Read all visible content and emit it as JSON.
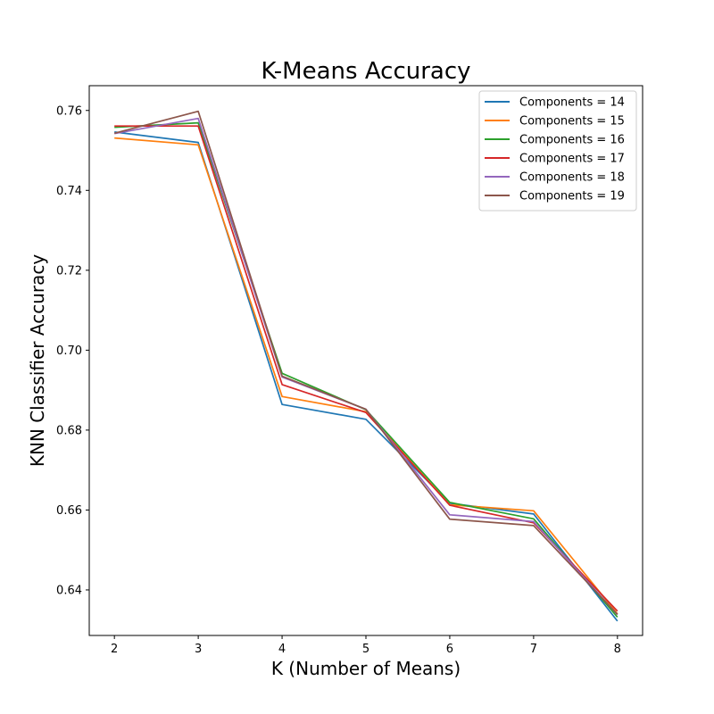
{
  "chart_data": {
    "type": "line",
    "title": "K-Means Accuracy",
    "xlabel": "K (Number of Means)",
    "ylabel": "KNN Classifier Accuracy",
    "x": [
      2,
      3,
      4,
      5,
      6,
      7,
      8
    ],
    "xticks": [
      "2",
      "3",
      "4",
      "5",
      "6",
      "7",
      "8"
    ],
    "yticks": [
      "0.64",
      "0.66",
      "0.68",
      "0.70",
      "0.72",
      "0.74",
      "0.76"
    ],
    "xlim": [
      1.7,
      8.3
    ],
    "ylim": [
      0.6286,
      0.7662
    ],
    "grid": false,
    "legend_position": "top-right",
    "series": [
      {
        "name": "Components = 14",
        "color": "#1f77b4",
        "values": [
          0.7546,
          0.752,
          0.6864,
          0.6827,
          0.6617,
          0.659,
          0.6322
        ]
      },
      {
        "name": "Components = 15",
        "color": "#ff7f0e",
        "values": [
          0.7531,
          0.7514,
          0.6884,
          0.6846,
          0.6613,
          0.6598,
          0.634
        ]
      },
      {
        "name": "Components = 16",
        "color": "#2ca02c",
        "values": [
          0.7558,
          0.7569,
          0.6942,
          0.6851,
          0.6619,
          0.6578,
          0.6332
        ]
      },
      {
        "name": "Components = 17",
        "color": "#d62728",
        "values": [
          0.7561,
          0.7561,
          0.6914,
          0.6844,
          0.6612,
          0.6568,
          0.6347
        ]
      },
      {
        "name": "Components = 18",
        "color": "#9467bd",
        "values": [
          0.7542,
          0.758,
          0.6933,
          0.6852,
          0.6588,
          0.6571,
          0.6338
        ]
      },
      {
        "name": "Components = 19",
        "color": "#8c564b",
        "values": [
          0.7543,
          0.7598,
          0.6935,
          0.6852,
          0.6577,
          0.6561,
          0.6339
        ]
      }
    ]
  }
}
